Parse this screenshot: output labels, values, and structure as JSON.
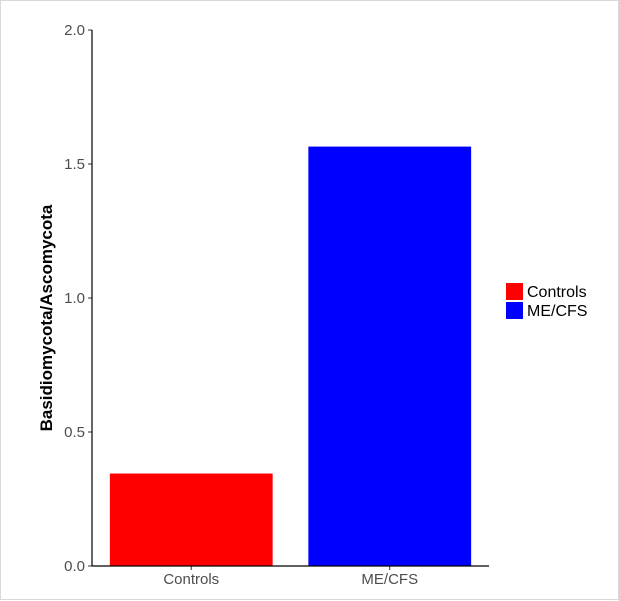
{
  "chart_data": {
    "type": "bar",
    "categories": [
      "Controls",
      "ME/CFS"
    ],
    "values": [
      0.345,
      1.565
    ],
    "colors": [
      "#ff0000",
      "#0000ff"
    ],
    "ylabel": "Basidiomycota/Ascomycota",
    "xlabel": "",
    "ylim": [
      0,
      2.0
    ],
    "yticks": [
      "0.0",
      "0.5",
      "1.0",
      "1.5",
      "2.0"
    ],
    "grid": false,
    "legend": {
      "placement": "right",
      "entries": [
        {
          "label": "Controls",
          "color": "#ff0000"
        },
        {
          "label": "ME/CFS",
          "color": "#0000ff"
        }
      ]
    }
  }
}
